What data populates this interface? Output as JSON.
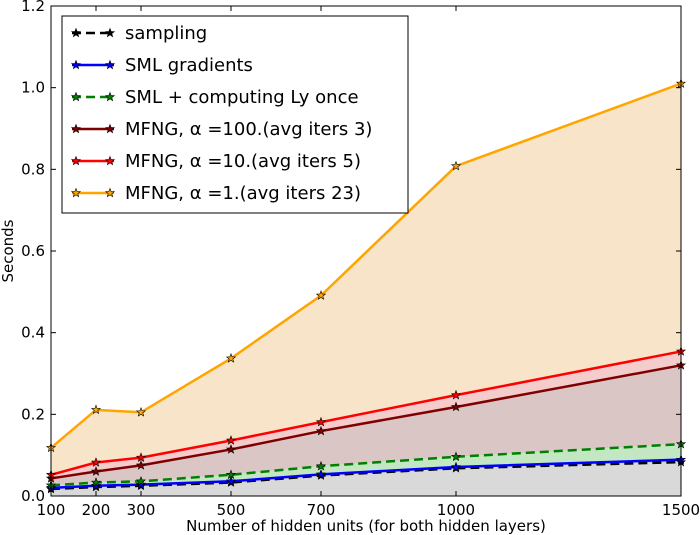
{
  "chart_data": {
    "type": "area",
    "xlabel": "Number of hidden units (for both hidden layers)",
    "ylabel": "Seconds",
    "xlim": [
      100,
      1500
    ],
    "ylim": [
      0,
      1.2
    ],
    "x": [
      100,
      200,
      300,
      500,
      700,
      1000,
      1500
    ],
    "xticks": [
      "100",
      "200",
      "300",
      "500",
      "700",
      "1000",
      "1500"
    ],
    "yticks": [
      "0.0",
      "0.2",
      "0.4",
      "0.6",
      "0.8",
      "1.0",
      "1.2"
    ],
    "legend_position": "upper-left",
    "series": [
      {
        "name": "sampling",
        "color": "#000000",
        "fill": "#d9d9d9",
        "dash": true,
        "values": [
          0.017,
          0.022,
          0.025,
          0.033,
          0.05,
          0.068,
          0.083
        ]
      },
      {
        "name": "SML gradients",
        "color": "#0000ff",
        "fill": "#c8c8f0",
        "dash": false,
        "values": [
          0.02,
          0.025,
          0.028,
          0.036,
          0.053,
          0.071,
          0.089
        ]
      },
      {
        "name": "SML + computing Ly once",
        "color": "#007f00",
        "fill": "#c2e7c2",
        "dash": true,
        "values": [
          0.026,
          0.033,
          0.036,
          0.052,
          0.073,
          0.096,
          0.127
        ]
      },
      {
        "name": "MFNG, α =100.(avg iters 3)",
        "color": "#7f0000",
        "fill": "#dbc6c6",
        "dash": false,
        "values": [
          0.043,
          0.06,
          0.075,
          0.114,
          0.159,
          0.218,
          0.32
        ]
      },
      {
        "name": "MFNG, α =10.(avg iters 5)",
        "color": "#ff0000",
        "fill": "#f4cccc",
        "dash": false,
        "values": [
          0.052,
          0.082,
          0.094,
          0.136,
          0.181,
          0.247,
          0.354
        ]
      },
      {
        "name": "MFNG, α =1.(avg iters 23)",
        "color": "#ffa500",
        "fill": "#f8e4c8",
        "dash": false,
        "values": [
          0.118,
          0.211,
          0.205,
          0.337,
          0.491,
          0.808,
          1.01
        ]
      }
    ]
  }
}
